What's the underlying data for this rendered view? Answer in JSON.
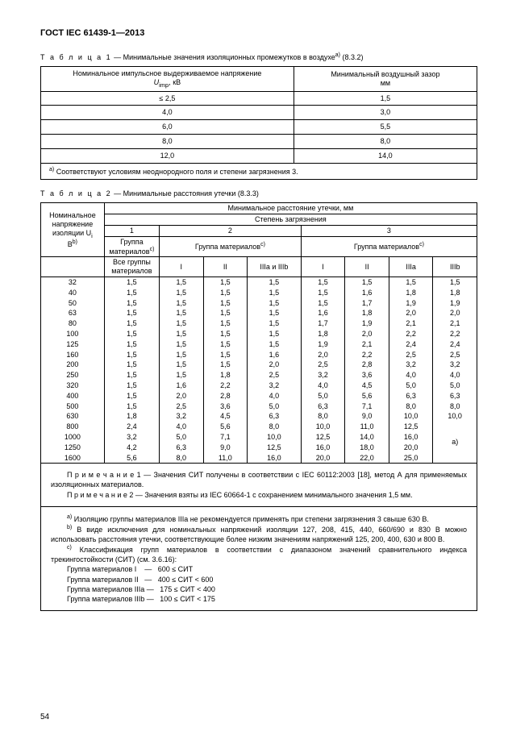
{
  "header": "ГОСТ IEC 61439-1—2013",
  "table1": {
    "caption_prefix": "Т а б л и ц а  1",
    "caption_sep": " — ",
    "caption_text": "Минимальные значения изоляционных промежутков в воздухе",
    "caption_sup": "a)",
    "caption_ref": " (8.3.2)",
    "col1_l1": "Номинальное импульсное выдерживаемое напряжение",
    "col1_l2": "U",
    "col1_l2_sub": "imp",
    "col1_l2_unit": ", кВ",
    "col2_l1": "Минимальный воздушный зазор",
    "col2_l2": "мм",
    "rows": [
      {
        "v": "≤ 2,5",
        "g": "1,5"
      },
      {
        "v": "4,0",
        "g": "3,0"
      },
      {
        "v": "6,0",
        "g": "5,5"
      },
      {
        "v": "8,0",
        "g": "8,0"
      },
      {
        "v": "12,0",
        "g": "14,0"
      }
    ],
    "footnote_sup": "a)",
    "footnote": " Соответствуют условиям неоднородного поля и степени загрязнения 3."
  },
  "table2": {
    "caption_prefix": "Т а б л и ц а  2",
    "caption_sep": " — ",
    "caption_text": "Минимальные расстояния утечки (8.3.3)",
    "head_top": "Минимальное расстояние утечки, мм",
    "head_stepen": "Степень загрязнения",
    "row_label_l1": "Номинальное",
    "row_label_l2": "напряжение",
    "row_label_l3": "изоляции U",
    "row_label_l3_sub": "i",
    "row_label_l4": "В",
    "row_label_sup": "b)",
    "g1": "1",
    "g2": "2",
    "g3": "3",
    "grp_label": "Группа",
    "grp_label2": "материалов",
    "grp_sup": "c)",
    "grp_long": "Группа материалов",
    "grp_long_sup": "c)",
    "allgrp_l1": "Все группы",
    "allgrp_l2": "материалов",
    "sub_I": "I",
    "sub_II": "II",
    "sub_IIIab": "IIIa и IIIb",
    "sub_IIIa": "IIIa",
    "sub_IIIb": "IIIb",
    "cell_a": "a)",
    "rows": [
      {
        "u": "32",
        "c": [
          "1,5",
          "1,5",
          "1,5",
          "1,5",
          "1,5",
          "1,5",
          "1,5",
          "1,5"
        ]
      },
      {
        "u": "40",
        "c": [
          "1,5",
          "1,5",
          "1,5",
          "1,5",
          "1,5",
          "1,6",
          "1,8",
          "1,8"
        ]
      },
      {
        "u": "50",
        "c": [
          "1,5",
          "1,5",
          "1,5",
          "1,5",
          "1,5",
          "1,7",
          "1,9",
          "1,9"
        ]
      },
      {
        "u": "63",
        "c": [
          "1,5",
          "1,5",
          "1,5",
          "1,5",
          "1,6",
          "1,8",
          "2,0",
          "2,0"
        ]
      },
      {
        "u": "80",
        "c": [
          "1,5",
          "1,5",
          "1,5",
          "1,5",
          "1,7",
          "1,9",
          "2,1",
          "2,1"
        ]
      },
      {
        "u": "100",
        "c": [
          "1,5",
          "1,5",
          "1,5",
          "1,5",
          "1,8",
          "2,0",
          "2,2",
          "2,2"
        ]
      },
      {
        "u": "125",
        "c": [
          "1,5",
          "1,5",
          "1,5",
          "1,5",
          "1,9",
          "2,1",
          "2,4",
          "2,4"
        ]
      },
      {
        "u": "160",
        "c": [
          "1,5",
          "1,5",
          "1,5",
          "1,6",
          "2,0",
          "2,2",
          "2,5",
          "2,5"
        ]
      },
      {
        "u": "200",
        "c": [
          "1,5",
          "1,5",
          "1,5",
          "2,0",
          "2,5",
          "2,8",
          "3,2",
          "3,2"
        ]
      },
      {
        "u": "250",
        "c": [
          "1,5",
          "1,5",
          "1,8",
          "2,5",
          "3,2",
          "3,6",
          "4,0",
          "4,0"
        ]
      },
      {
        "u": "320",
        "c": [
          "1,5",
          "1,6",
          "2,2",
          "3,2",
          "4,0",
          "4,5",
          "5,0",
          "5,0"
        ]
      },
      {
        "u": "400",
        "c": [
          "1,5",
          "2,0",
          "2,8",
          "4,0",
          "5,0",
          "5,6",
          "6,3",
          "6,3"
        ]
      },
      {
        "u": "500",
        "c": [
          "1,5",
          "2,5",
          "3,6",
          "5,0",
          "6,3",
          "7,1",
          "8,0",
          "8,0"
        ]
      },
      {
        "u": "630",
        "c": [
          "1,8",
          "3,2",
          "4,5",
          "6,3",
          "8,0",
          "9,0",
          "10,0",
          "10,0"
        ]
      },
      {
        "u": "800",
        "c": [
          "2,4",
          "4,0",
          "5,6",
          "8,0",
          "10,0",
          "11,0",
          "12,5"
        ]
      },
      {
        "u": "1000",
        "c": [
          "3,2",
          "5,0",
          "7,1",
          "10,0",
          "12,5",
          "14,0",
          "16,0"
        ]
      },
      {
        "u": "1250",
        "c": [
          "4,2",
          "6,3",
          "9,0",
          "12,5",
          "16,0",
          "18,0",
          "20,0"
        ]
      },
      {
        "u": "1600",
        "c": [
          "5,6",
          "8,0",
          "11,0",
          "16,0",
          "20,0",
          "22,0",
          "25,0"
        ]
      }
    ],
    "note1_label": "П р и м е ч а н и е  1",
    "note1_text": " — Значения СИТ получены в соответствии с IEC 60112:2003 [18], метод А для применяемых изоляционных материалов.",
    "note2_label": "П р и м е ч а н и е  2",
    "note2_text": " — Значения взяты из IEC 60664-1 с сохранением минимального значения 1,5 мм.",
    "fn_a_sup": "a)",
    "fn_a": " Изоляцию группы материалов IIIa не рекомендуется применять при степени загрязнения 3 свыше 630 В.",
    "fn_b_sup": "b)",
    "fn_b": " В виде исключения для номинальных напряжений изоляции 127, 208, 415, 440, 660/690 и 830 В можно использовать расстояния утечки, соответствующие более низким значениям напряжений 125, 200, 400, 630 и 800 В.",
    "fn_c_sup": "c)",
    "fn_c": " Классификация групп материалов в соответствии с диапазоном значений сравнительного индекса трекингостойкости  (СИТ) (см. 3.6.16):",
    "cls": [
      "Группа материалов I    —   600 ≤ СИТ",
      "Группа материалов II   —   400 ≤ СИТ < 600",
      "Группа материалов IIIa —   175 ≤ СИТ < 400",
      "Группа материалов IIIb —   100 ≤ СИТ < 175"
    ]
  },
  "page": "54"
}
